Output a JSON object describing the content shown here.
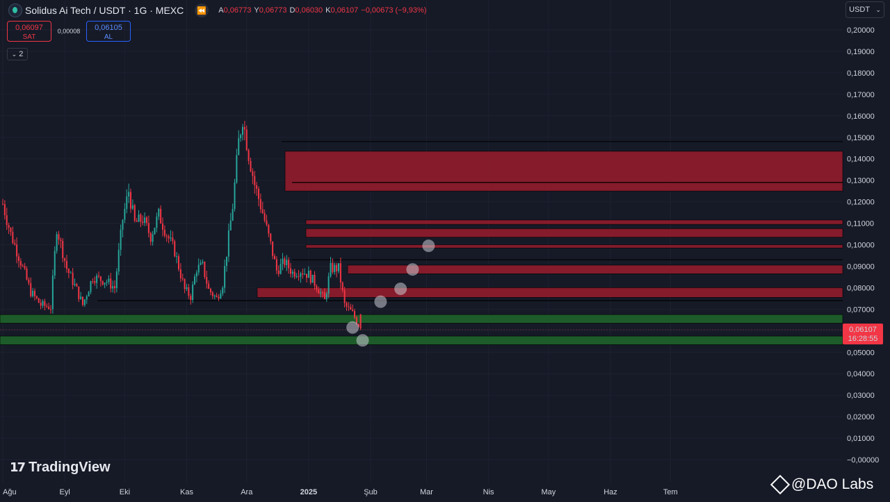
{
  "header": {
    "symbol": "Solidus Ai Tech / USDT · 1G · MEXC",
    "ohlc": [
      {
        "key": "A",
        "value": "0,06773"
      },
      {
        "key": "Y",
        "value": "0,06773"
      },
      {
        "key": "D",
        "value": "0,06030"
      },
      {
        "key": "K",
        "value": "0,06107"
      },
      {
        "key": "",
        "value": "−0,00673 (−9,93%)"
      }
    ]
  },
  "trade": {
    "sell_price": "0,06097",
    "sell_label": "SAT",
    "spread": "0,00008",
    "buy_price": "0,06105",
    "buy_label": "AL"
  },
  "indicators_count": "2",
  "currency": "USDT",
  "price_tag": {
    "price": "0,06107",
    "countdown": "16:28:55"
  },
  "brand": "TradingView",
  "watermark": "@DAO Labs",
  "colors": {
    "background": "#161a27",
    "up": "#26a69a",
    "down": "#f23645",
    "resistance_zone": "#8b1c2c",
    "support_zone": "#1d5c2a",
    "projection_dot": "#c9cbd1"
  },
  "chart_data": {
    "type": "candlestick",
    "y_axis": {
      "ylim": [
        0,
        0.2
      ],
      "ticks": [
        "0,20000",
        "0,19000",
        "0,18000",
        "0,17000",
        "0,16000",
        "0,15000",
        "0,14000",
        "0,13000",
        "0,12000",
        "0,11000",
        "0,10000",
        "0,09000",
        "0,08000",
        "0,07000",
        "0,06000",
        "0,05000",
        "0,04000",
        "0,03000",
        "0,02000",
        "0,01000",
        "−0,00000"
      ]
    },
    "x_axis": {
      "labels": [
        "Ağu",
        "Eyl",
        "Eki",
        "Kas",
        "Ara",
        "2025",
        "Şub",
        "Mar",
        "Nis",
        "May",
        "Haz",
        "Tem"
      ]
    },
    "approx_close_path": [
      {
        "date": "2024-08-01",
        "close": 0.119
      },
      {
        "date": "2024-08-05",
        "close": 0.105
      },
      {
        "date": "2024-08-10",
        "close": 0.092
      },
      {
        "date": "2024-08-15",
        "close": 0.078
      },
      {
        "date": "2024-08-20",
        "close": 0.072
      },
      {
        "date": "2024-08-25",
        "close": 0.071
      },
      {
        "date": "2024-08-28",
        "close": 0.108
      },
      {
        "date": "2024-09-02",
        "close": 0.089
      },
      {
        "date": "2024-09-07",
        "close": 0.079
      },
      {
        "date": "2024-09-10",
        "close": 0.072
      },
      {
        "date": "2024-09-15",
        "close": 0.085
      },
      {
        "date": "2024-09-22",
        "close": 0.083
      },
      {
        "date": "2024-09-26",
        "close": 0.08
      },
      {
        "date": "2024-09-30",
        "close": 0.112
      },
      {
        "date": "2024-10-03",
        "close": 0.125
      },
      {
        "date": "2024-10-06",
        "close": 0.11
      },
      {
        "date": "2024-10-10",
        "close": 0.112
      },
      {
        "date": "2024-10-14",
        "close": 0.104
      },
      {
        "date": "2024-10-18",
        "close": 0.114
      },
      {
        "date": "2024-10-22",
        "close": 0.105
      },
      {
        "date": "2024-10-26",
        "close": 0.097
      },
      {
        "date": "2024-10-31",
        "close": 0.079
      },
      {
        "date": "2024-11-03",
        "close": 0.076
      },
      {
        "date": "2024-11-06",
        "close": 0.089
      },
      {
        "date": "2024-11-09",
        "close": 0.09
      },
      {
        "date": "2024-11-12",
        "close": 0.079
      },
      {
        "date": "2024-11-16",
        "close": 0.075
      },
      {
        "date": "2024-11-19",
        "close": 0.082
      },
      {
        "date": "2024-11-24",
        "close": 0.118
      },
      {
        "date": "2024-11-27",
        "close": 0.148
      },
      {
        "date": "2024-11-29",
        "close": 0.159
      },
      {
        "date": "2024-12-02",
        "close": 0.142
      },
      {
        "date": "2024-12-05",
        "close": 0.128
      },
      {
        "date": "2024-12-09",
        "close": 0.115
      },
      {
        "date": "2024-12-13",
        "close": 0.1
      },
      {
        "date": "2024-12-16",
        "close": 0.088
      },
      {
        "date": "2024-12-20",
        "close": 0.092
      },
      {
        "date": "2024-12-24",
        "close": 0.087
      },
      {
        "date": "2024-12-28",
        "close": 0.088
      },
      {
        "date": "2025-01-01",
        "close": 0.086
      },
      {
        "date": "2025-01-05",
        "close": 0.081
      },
      {
        "date": "2025-01-09",
        "close": 0.074
      },
      {
        "date": "2025-01-12",
        "close": 0.089
      },
      {
        "date": "2025-01-16",
        "close": 0.089
      },
      {
        "date": "2025-01-19",
        "close": 0.072
      },
      {
        "date": "2025-01-23",
        "close": 0.068
      },
      {
        "date": "2025-01-27",
        "close": 0.06107
      }
    ],
    "resistance_zones": [
      {
        "from": 0.125,
        "to": 0.1435
      },
      {
        "from": 0.1095,
        "to": 0.1115
      },
      {
        "from": 0.1035,
        "to": 0.1075
      },
      {
        "from": 0.0985,
        "to": 0.1
      },
      {
        "from": 0.0865,
        "to": 0.0905
      },
      {
        "from": 0.0755,
        "to": 0.08
      }
    ],
    "resistance_lines": [
      0.148,
      0.129,
      0.093,
      0.074
    ],
    "support_zones": [
      {
        "from": 0.0635,
        "to": 0.0675
      },
      {
        "from": 0.0535,
        "to": 0.0575
      }
    ],
    "support_lines": [
      0.0605
    ],
    "projection_points": [
      {
        "date": "2025-01-23",
        "price": 0.0615
      },
      {
        "date": "2025-01-28",
        "price": 0.0555
      },
      {
        "date": "2025-02-06",
        "price": 0.0735
      },
      {
        "date": "2025-02-16",
        "price": 0.0795
      },
      {
        "date": "2025-02-22",
        "price": 0.0885
      },
      {
        "date": "2025-03-02",
        "price": 0.0995
      }
    ],
    "last_price": 0.06107
  }
}
